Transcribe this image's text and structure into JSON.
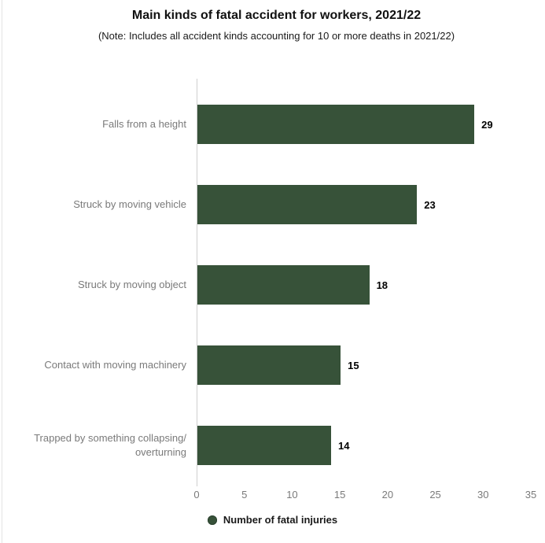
{
  "page": {
    "title": "Main kinds of fatal accident for workers, 2021/22",
    "subtitle": "(Note: Includes all accident kinds accounting for 10 or more deaths in 2021/22)"
  },
  "chart_data": {
    "type": "bar",
    "orientation": "horizontal",
    "title": "Main kinds of fatal accident for workers, 2021/22",
    "subtitle": "(Note: Includes all accident kinds accounting for 10 or more deaths in 2021/22)",
    "categories": [
      "Falls from a height",
      "Struck by moving vehicle",
      "Struck by moving object",
      "Contact with moving machinery",
      "Trapped by something collapsing/ overturning"
    ],
    "values": [
      29,
      23,
      18,
      15,
      14
    ],
    "series_name": "Number of fatal injuries",
    "xlabel": "",
    "ylabel": "",
    "xlim": [
      0,
      35
    ],
    "x_ticks": [
      0,
      5,
      10,
      15,
      20,
      25,
      30,
      35
    ],
    "grid": false,
    "value_labels_shown": true,
    "legend_position": "bottom"
  },
  "legend": {
    "label": "Number of fatal injuries"
  },
  "colors": {
    "bar": "#375239",
    "legend_marker": "#375239",
    "category_label": "#7a7a7a",
    "tick_label": "#7a7a7a",
    "axis_line": "#cfcfcf",
    "value_label": "#000000",
    "title": "#111111"
  }
}
